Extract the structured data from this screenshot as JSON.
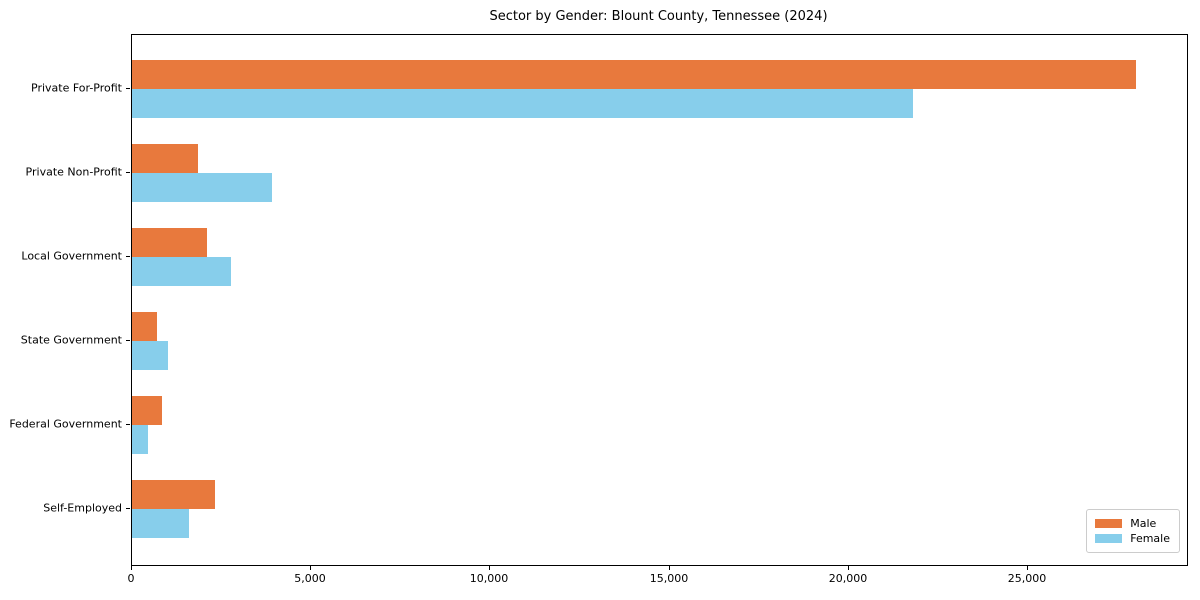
{
  "title": "Sector by Gender: Blount County, Tennessee (2024)",
  "chart_data": {
    "type": "bar",
    "orientation": "horizontal",
    "title": "Sector by Gender: Blount County, Tennessee (2024)",
    "categories": [
      "Private For-Profit",
      "Private Non-Profit",
      "Local Government",
      "State Government",
      "Federal Government",
      "Self-Employed"
    ],
    "series": [
      {
        "name": "Male",
        "color": "#E8793D",
        "values": [
          28000,
          1850,
          2080,
          700,
          850,
          2320
        ]
      },
      {
        "name": "Female",
        "color": "#87CEEB",
        "values": [
          21800,
          3900,
          2770,
          1000,
          440,
          1600
        ]
      }
    ],
    "xlabel": "",
    "ylabel": "",
    "xlim": [
      0,
      29435
    ],
    "xticks": [
      0,
      5000,
      10000,
      15000,
      20000,
      25000
    ],
    "xtick_labels": [
      "0",
      "5,000",
      "10,000",
      "15,000",
      "20,000",
      "25,000"
    ],
    "grid": false,
    "legend_position": "lower right",
    "legend_title": ""
  }
}
